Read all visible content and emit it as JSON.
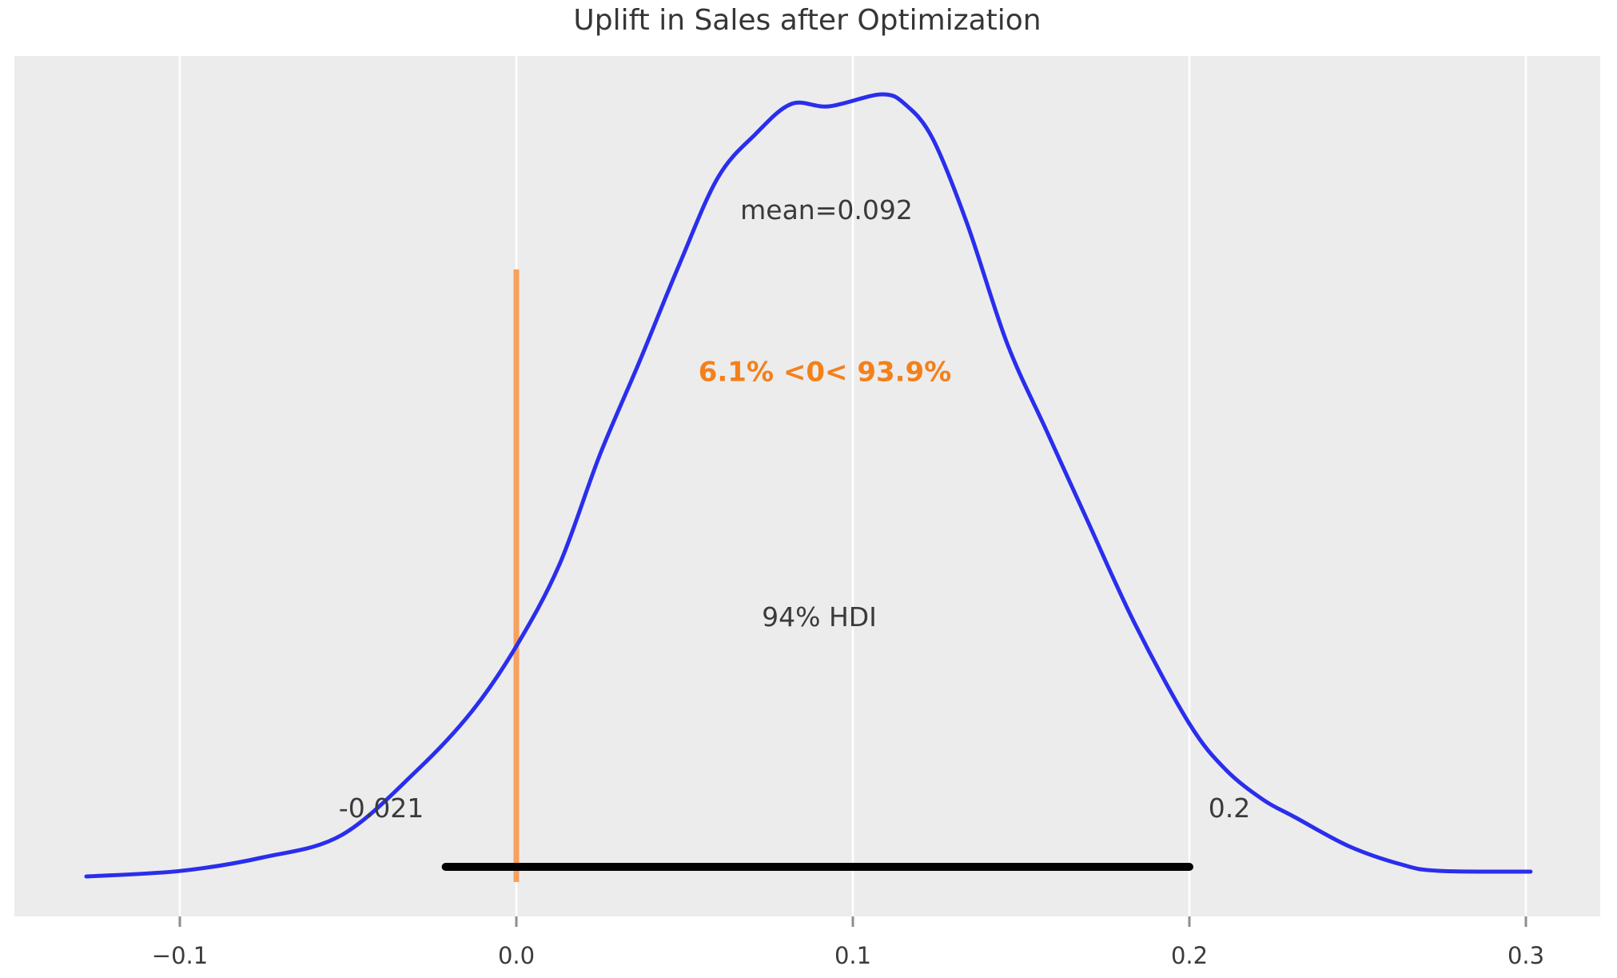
{
  "chart_data": {
    "type": "line",
    "subtype": "posterior_kde_density",
    "title": "Uplift in Sales after Optimization",
    "xlabel": "",
    "ylabel": "",
    "legend": "none",
    "grid": "vertical-white-on-gray",
    "x_tick_labels": [
      "−0.1",
      "0.0",
      "0.1",
      "0.2",
      "0.3"
    ],
    "x_tick_values": [
      -0.1,
      0.0,
      0.1,
      0.2,
      0.3
    ],
    "xlim": [
      -0.149,
      0.322
    ],
    "stats": {
      "mean": 0.092,
      "mean_label": "mean=0.092",
      "hdi_prob": 0.94,
      "hdi_label": "94% HDI",
      "hdi_low": -0.021,
      "hdi_high": 0.2,
      "hdi_low_label": "-0.021",
      "hdi_high_label": "0.2",
      "ref_value": 0,
      "pct_below_ref": 6.1,
      "pct_above_ref": 93.9,
      "prob_label": "6.1% <0< 93.9%"
    },
    "colors": {
      "plot_background": "#ececec",
      "gridline": "#ffffff",
      "kde_curve": "#2a2eec",
      "ref_line": "#f8a05c",
      "prob_text": "#f4801a",
      "hdi_line": "#000000",
      "text": "#3a3a3a",
      "tick_mark": "#8e8e8e"
    },
    "kde_points": [
      [
        -0.1278,
        0.0
      ],
      [
        -0.1,
        0.007
      ],
      [
        -0.0751,
        0.0245
      ],
      [
        -0.0518,
        0.0532
      ],
      [
        -0.0292,
        0.137
      ],
      [
        -0.0133,
        0.2106
      ],
      [
        0.0,
        0.2945
      ],
      [
        0.0128,
        0.3988
      ],
      [
        0.0247,
        0.5378
      ],
      [
        0.0366,
        0.6585
      ],
      [
        0.0485,
        0.7832
      ],
      [
        0.0599,
        0.8937
      ],
      [
        0.071,
        0.9489
      ],
      [
        0.0817,
        0.9877
      ],
      [
        0.0929,
        0.9847
      ],
      [
        0.1085,
        1.0
      ],
      [
        0.1157,
        0.9867
      ],
      [
        0.1238,
        0.9427
      ],
      [
        0.134,
        0.8343
      ],
      [
        0.1459,
        0.681
      ],
      [
        0.1577,
        0.5685
      ],
      [
        0.1696,
        0.456
      ],
      [
        0.1838,
        0.3231
      ],
      [
        0.2,
        0.1953
      ],
      [
        0.2107,
        0.137
      ],
      [
        0.2219,
        0.0982
      ],
      [
        0.2314,
        0.0757
      ],
      [
        0.2473,
        0.0389
      ],
      [
        0.263,
        0.0153
      ],
      [
        0.2741,
        0.0072
      ],
      [
        0.3014,
        0.0061
      ]
    ]
  }
}
